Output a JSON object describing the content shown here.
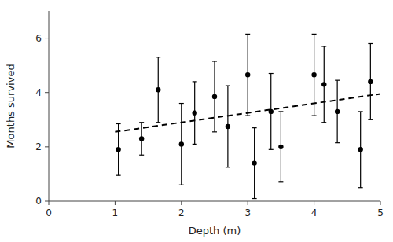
{
  "chart_data": {
    "type": "scatter",
    "xlabel": "Depth (m)",
    "ylabel": "Months survived",
    "xlim": [
      0,
      5
    ],
    "ylim": [
      0,
      7
    ],
    "xticks": [
      0,
      1,
      2,
      3,
      4,
      5
    ],
    "yticks": [
      0,
      2,
      4,
      6
    ],
    "series": [
      {
        "type": "scatter",
        "marker": "circle",
        "color": "black",
        "x": [
          1.05,
          1.4,
          1.65,
          2.0,
          2.2,
          2.5,
          2.7,
          3.0,
          3.1,
          3.35,
          3.5,
          4.0,
          4.15,
          4.35,
          4.7,
          4.85
        ],
        "values": [
          1.9,
          2.3,
          4.1,
          2.1,
          3.25,
          3.85,
          2.75,
          4.65,
          1.4,
          3.3,
          2.0,
          4.65,
          4.3,
          3.3,
          1.9,
          4.4
        ],
        "yerr": [
          0.95,
          0.6,
          1.2,
          1.5,
          1.15,
          1.3,
          1.5,
          1.5,
          1.3,
          1.4,
          1.3,
          1.5,
          1.4,
          1.15,
          1.4,
          1.4
        ]
      },
      {
        "type": "line",
        "line_style": "dashed",
        "color": "black",
        "x": [
          1.0,
          5.0
        ],
        "values": [
          2.55,
          3.95
        ]
      }
    ]
  }
}
